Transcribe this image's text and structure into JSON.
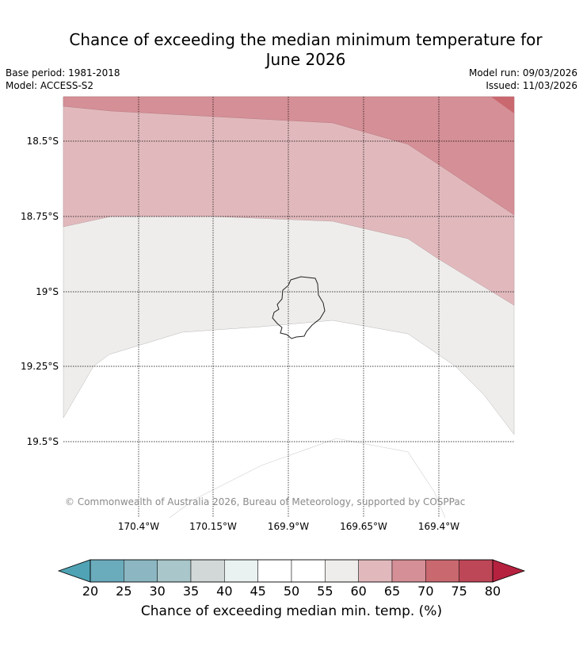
{
  "header": {
    "title_line1": "Chance of exceeding the median minimum temperature for",
    "title_line2": "June 2026",
    "base_period": "Base period: 1981-2018",
    "model": "Model: ACCESS-S2",
    "model_run": "Model run: 09/03/2026",
    "issued": "Issued: 11/03/2026"
  },
  "map": {
    "lat_labels": [
      "18.5°S",
      "18.75°S",
      "19°S",
      "19.25°S",
      "19.5°S"
    ],
    "lon_labels": [
      "170.4°W",
      "170.15°W",
      "169.9°W",
      "169.65°W",
      "169.4°W"
    ],
    "copyright": "© Commonwealth of Australia 2026, Bureau of Meteorology, supported by COSPPac",
    "island_icon": "niue-coastline-icon"
  },
  "colorbar": {
    "label": "Chance of exceeding median min. temp. (%)",
    "ticks": [
      "20",
      "25",
      "30",
      "35",
      "40",
      "45",
      "50",
      "55",
      "60",
      "65",
      "70",
      "75",
      "80"
    ],
    "under_color": "#4fa3b4",
    "over_color": "#b5213f",
    "colors": [
      "#6aabbc",
      "#8bb6c2",
      "#a9c6ca",
      "#d2d7d8",
      "#eaf1f1",
      "#ffffff",
      "#ffffff",
      "#eeedeb",
      "#e1b9bd",
      "#d58f96",
      "#c9686f",
      "#bd4657"
    ]
  }
}
